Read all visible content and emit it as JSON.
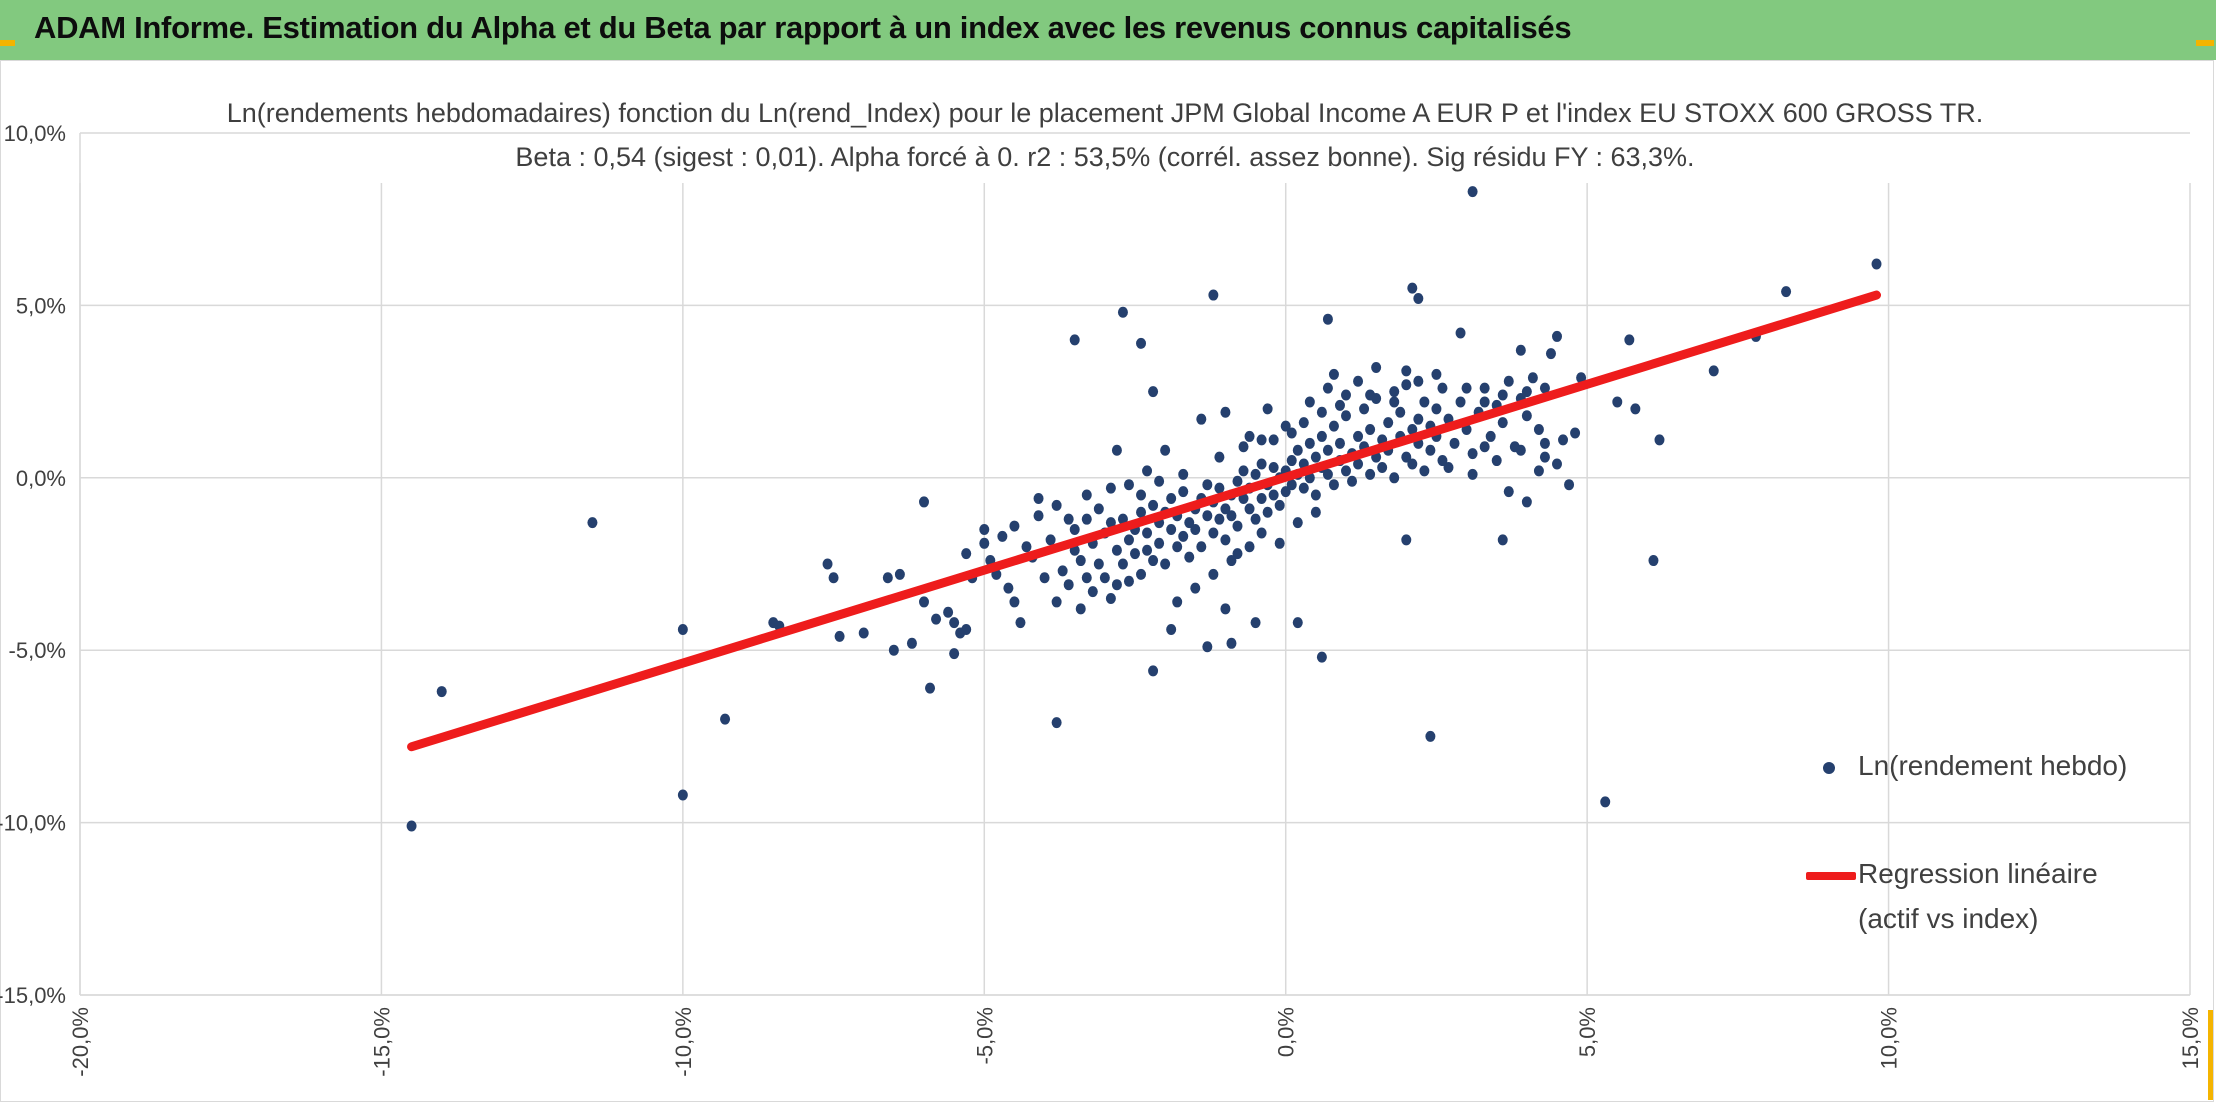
{
  "header": {
    "title": "ADAM Informe. Estimation du Alpha et du Beta par rapport à un index avec les revenus connus capitalisés"
  },
  "colors": {
    "banner": "#82c97f",
    "points": "#25406e",
    "regression": "#ee1c1c",
    "grid": "#d9d9d9"
  },
  "chart_data": {
    "type": "scatter",
    "title": "Ln(rendements hebdomadaires) fonction du Ln(rend_Index) pour le placement JPM Global Income A EUR P et l'index EU STOXX 600 GROSS TR.",
    "subtitle": "Beta : 0,54 (sigest : 0,01). Alpha forcé à 0. r2 : 53,5% (corrél. assez bonne). Sig résidu FY : 63,3%.",
    "xlim": [
      -0.2,
      0.15
    ],
    "ylim": [
      -0.15,
      0.1
    ],
    "x_ticks": [
      -0.2,
      -0.15,
      -0.1,
      -0.05,
      0.0,
      0.05,
      0.1,
      0.15
    ],
    "y_ticks": [
      -0.15,
      -0.1,
      -0.05,
      0.0,
      0.05,
      0.1
    ],
    "x_tick_labels": [
      "-20,0%",
      "-15,0%",
      "-10,0%",
      "-5,0%",
      "0,0%",
      "5,0%",
      "10,0%",
      "15,0%"
    ],
    "y_tick_labels": [
      "-15,0%",
      "-10,0%",
      "-5,0%",
      "0,0%",
      "5,0%",
      "10,0%"
    ],
    "grid": true,
    "legend_position": "right",
    "series": [
      {
        "name": "Ln(rendement hebdo)",
        "type": "scatter",
        "points": [
          [
            -0.145,
            -0.101
          ],
          [
            -0.14,
            -0.062
          ],
          [
            -0.115,
            -0.013
          ],
          [
            -0.1,
            -0.044
          ],
          [
            -0.1,
            -0.092
          ],
          [
            -0.093,
            -0.07
          ],
          [
            -0.085,
            -0.042
          ],
          [
            -0.084,
            -0.043
          ],
          [
            -0.076,
            -0.025
          ],
          [
            -0.075,
            -0.029
          ],
          [
            -0.074,
            -0.046
          ],
          [
            -0.07,
            -0.045
          ],
          [
            -0.066,
            -0.029
          ],
          [
            -0.065,
            -0.05
          ],
          [
            -0.064,
            -0.028
          ],
          [
            -0.062,
            -0.048
          ],
          [
            -0.06,
            -0.007
          ],
          [
            -0.06,
            -0.036
          ],
          [
            -0.059,
            -0.061
          ],
          [
            -0.058,
            -0.041
          ],
          [
            -0.056,
            -0.039
          ],
          [
            -0.055,
            -0.042
          ],
          [
            -0.055,
            -0.051
          ],
          [
            -0.054,
            -0.045
          ],
          [
            -0.053,
            -0.044
          ],
          [
            -0.052,
            -0.029
          ],
          [
            -0.05,
            -0.015
          ],
          [
            -0.049,
            -0.024
          ],
          [
            -0.048,
            -0.028
          ],
          [
            -0.047,
            -0.017
          ],
          [
            -0.046,
            -0.032
          ],
          [
            -0.045,
            -0.036
          ],
          [
            -0.044,
            -0.042
          ],
          [
            -0.043,
            -0.02
          ],
          [
            -0.042,
            -0.023
          ],
          [
            -0.041,
            -0.006
          ],
          [
            -0.04,
            -0.029
          ],
          [
            -0.039,
            -0.018
          ],
          [
            -0.038,
            -0.036
          ],
          [
            -0.037,
            -0.027
          ],
          [
            -0.036,
            -0.012
          ],
          [
            -0.036,
            -0.031
          ],
          [
            -0.035,
            -0.015
          ],
          [
            -0.035,
            -0.021
          ],
          [
            -0.034,
            -0.038
          ],
          [
            -0.034,
            -0.024
          ],
          [
            -0.033,
            -0.029
          ],
          [
            -0.033,
            -0.012
          ],
          [
            -0.032,
            -0.033
          ],
          [
            -0.032,
            -0.019
          ],
          [
            -0.031,
            -0.025
          ],
          [
            -0.031,
            -0.009
          ],
          [
            -0.03,
            -0.016
          ],
          [
            -0.03,
            -0.029
          ],
          [
            -0.029,
            -0.035
          ],
          [
            -0.029,
            -0.013
          ],
          [
            -0.028,
            -0.021
          ],
          [
            -0.028,
            -0.031
          ],
          [
            -0.027,
            -0.012
          ],
          [
            -0.027,
            -0.025
          ],
          [
            -0.026,
            -0.018
          ],
          [
            -0.026,
            -0.03
          ],
          [
            -0.025,
            -0.015
          ],
          [
            -0.025,
            -0.022
          ],
          [
            -0.024,
            -0.01
          ],
          [
            -0.024,
            -0.028
          ],
          [
            -0.023,
            -0.016
          ],
          [
            -0.023,
            -0.021
          ],
          [
            -0.022,
            -0.008
          ],
          [
            -0.022,
            -0.024
          ],
          [
            -0.021,
            -0.013
          ],
          [
            -0.021,
            -0.019
          ],
          [
            -0.02,
            -0.01
          ],
          [
            -0.02,
            -0.025
          ],
          [
            -0.019,
            -0.015
          ],
          [
            -0.019,
            -0.006
          ],
          [
            -0.018,
            -0.02
          ],
          [
            -0.018,
            -0.011
          ],
          [
            -0.017,
            -0.017
          ],
          [
            -0.017,
            -0.004
          ],
          [
            -0.016,
            -0.013
          ],
          [
            -0.016,
            -0.023
          ],
          [
            -0.015,
            -0.009
          ],
          [
            -0.015,
            -0.015
          ],
          [
            -0.014,
            -0.006
          ],
          [
            -0.014,
            -0.02
          ],
          [
            -0.013,
            -0.011
          ],
          [
            -0.013,
            -0.002
          ],
          [
            -0.012,
            -0.016
          ],
          [
            -0.012,
            -0.007
          ],
          [
            -0.011,
            -0.012
          ],
          [
            -0.011,
            -0.003
          ],
          [
            -0.01,
            -0.009
          ],
          [
            -0.01,
            -0.018
          ],
          [
            -0.009,
            -0.005
          ],
          [
            -0.009,
            -0.011
          ],
          [
            -0.008,
            -0.001
          ],
          [
            -0.008,
            -0.014
          ],
          [
            -0.007,
            -0.006
          ],
          [
            -0.007,
            0.002
          ],
          [
            -0.006,
            -0.009
          ],
          [
            -0.006,
            -0.003
          ],
          [
            -0.005,
            -0.012
          ],
          [
            -0.005,
            0.001
          ],
          [
            -0.004,
            -0.006
          ],
          [
            -0.004,
            0.004
          ],
          [
            -0.003,
            -0.002
          ],
          [
            -0.003,
            -0.01
          ],
          [
            -0.002,
            0.003
          ],
          [
            -0.002,
            -0.005
          ],
          [
            -0.001,
            0.0
          ],
          [
            -0.001,
            -0.008
          ],
          [
            0.0,
            0.002
          ],
          [
            0.0,
            -0.004
          ],
          [
            0.001,
            0.005
          ],
          [
            0.001,
            -0.002
          ],
          [
            0.002,
            0.001
          ],
          [
            0.002,
            0.008
          ],
          [
            0.003,
            -0.003
          ],
          [
            0.003,
            0.004
          ],
          [
            0.004,
            0.01
          ],
          [
            0.004,
            0.0
          ],
          [
            0.005,
            0.006
          ],
          [
            0.005,
            -0.005
          ],
          [
            0.006,
            0.003
          ],
          [
            0.006,
            0.012
          ],
          [
            0.007,
            0.001
          ],
          [
            0.007,
            0.008
          ],
          [
            0.008,
            -0.002
          ],
          [
            0.008,
            0.015
          ],
          [
            0.009,
            0.005
          ],
          [
            0.009,
            0.01
          ],
          [
            0.01,
            0.002
          ],
          [
            0.01,
            0.018
          ],
          [
            0.011,
            0.007
          ],
          [
            0.011,
            -0.001
          ],
          [
            0.012,
            0.012
          ],
          [
            0.012,
            0.004
          ],
          [
            0.013,
            0.02
          ],
          [
            0.013,
            0.009
          ],
          [
            0.014,
            0.001
          ],
          [
            0.014,
            0.014
          ],
          [
            0.015,
            0.006
          ],
          [
            0.015,
            0.023
          ],
          [
            0.016,
            0.011
          ],
          [
            0.016,
            0.003
          ],
          [
            0.017,
            0.016
          ],
          [
            0.017,
            0.008
          ],
          [
            0.018,
            0.025
          ],
          [
            0.018,
            0.0
          ],
          [
            0.019,
            0.012
          ],
          [
            0.019,
            0.019
          ],
          [
            0.02,
            0.006
          ],
          [
            0.02,
            0.027
          ],
          [
            0.021,
            0.014
          ],
          [
            0.021,
            0.004
          ],
          [
            0.022,
            0.017
          ],
          [
            0.022,
            0.01
          ],
          [
            0.023,
            0.022
          ],
          [
            0.023,
            0.002
          ],
          [
            0.024,
            0.015
          ],
          [
            0.024,
            0.008
          ],
          [
            0.025,
            0.02
          ],
          [
            0.025,
            0.012
          ],
          [
            0.026,
            0.026
          ],
          [
            0.026,
            0.005
          ],
          [
            0.027,
            0.017
          ],
          [
            0.028,
            0.01
          ],
          [
            0.029,
            0.022
          ],
          [
            0.03,
            0.014
          ],
          [
            0.031,
            0.007
          ],
          [
            0.032,
            0.019
          ],
          [
            0.033,
            0.026
          ],
          [
            0.034,
            0.012
          ],
          [
            0.035,
            0.021
          ],
          [
            0.036,
            0.016
          ],
          [
            0.037,
            0.028
          ],
          [
            0.038,
            0.009
          ],
          [
            0.039,
            0.023
          ],
          [
            0.04,
            0.018
          ],
          [
            0.041,
            0.029
          ],
          [
            0.042,
            0.014
          ],
          [
            0.043,
            0.01
          ],
          [
            0.044,
            0.036
          ],
          [
            0.045,
            0.004
          ],
          [
            -0.014,
            0.017
          ],
          [
            -0.01,
            0.019
          ],
          [
            -0.006,
            0.012
          ],
          [
            -0.003,
            0.02
          ],
          [
            0.0,
            0.015
          ],
          [
            -0.02,
            0.008
          ],
          [
            -0.017,
            0.001
          ],
          [
            0.004,
            0.022
          ],
          [
            0.007,
            0.026
          ],
          [
            0.01,
            0.024
          ],
          [
            -0.008,
            -0.022
          ],
          [
            -0.004,
            -0.016
          ],
          [
            -0.001,
            -0.019
          ],
          [
            0.002,
            -0.013
          ],
          [
            0.005,
            -0.01
          ],
          [
            -0.012,
            -0.028
          ],
          [
            -0.009,
            -0.024
          ],
          [
            -0.006,
            -0.02
          ],
          [
            -0.015,
            -0.032
          ],
          [
            -0.018,
            -0.036
          ],
          [
            0.008,
            0.03
          ],
          [
            0.012,
            0.028
          ],
          [
            0.015,
            0.032
          ],
          [
            0.02,
            0.031
          ],
          [
            0.025,
            0.03
          ],
          [
            0.03,
            0.026
          ],
          [
            0.033,
            0.022
          ],
          [
            0.036,
            0.024
          ],
          [
            0.04,
            0.025
          ],
          [
            0.043,
            0.026
          ],
          [
            -0.002,
            0.011
          ],
          [
            0.001,
            0.013
          ],
          [
            0.003,
            0.016
          ],
          [
            0.006,
            0.019
          ],
          [
            0.009,
            0.021
          ],
          [
            -0.011,
            0.006
          ],
          [
            -0.007,
            0.009
          ],
          [
            -0.004,
            0.011
          ],
          [
            -0.026,
            -0.002
          ],
          [
            -0.023,
            0.002
          ],
          [
            -0.033,
            -0.005
          ],
          [
            -0.029,
            -0.003
          ],
          [
            0.014,
            0.024
          ],
          [
            0.018,
            0.022
          ],
          [
            0.022,
            0.028
          ],
          [
            -0.038,
            -0.008
          ],
          [
            -0.041,
            -0.011
          ],
          [
            -0.045,
            -0.014
          ],
          [
            -0.05,
            -0.019
          ],
          [
            -0.053,
            -0.022
          ],
          [
            -0.028,
            0.008
          ],
          [
            -0.024,
            -0.005
          ],
          [
            -0.021,
            -0.001
          ],
          [
            0.027,
            0.003
          ],
          [
            0.031,
            0.001
          ],
          [
            0.035,
            0.005
          ],
          [
            0.039,
            0.008
          ],
          [
            0.043,
            0.006
          ],
          [
            0.046,
            0.011
          ],
          [
            0.048,
            0.013
          ],
          [
            0.055,
            0.022
          ],
          [
            0.058,
            0.02
          ],
          [
            0.071,
            0.031
          ],
          [
            0.078,
            0.041
          ],
          [
            0.083,
            0.054
          ],
          [
            0.098,
            0.062
          ],
          [
            0.062,
            0.011
          ],
          [
            0.057,
            0.04
          ],
          [
            0.061,
            -0.024
          ],
          [
            0.053,
            -0.094
          ],
          [
            0.049,
            0.029
          ],
          [
            0.045,
            0.041
          ],
          [
            0.047,
            -0.002
          ],
          [
            0.024,
            -0.075
          ],
          [
            0.031,
            0.083
          ],
          [
            0.021,
            0.055
          ],
          [
            0.022,
            0.052
          ],
          [
            0.007,
            0.046
          ],
          [
            -0.012,
            0.053
          ],
          [
            -0.027,
            0.048
          ],
          [
            -0.024,
            0.039
          ],
          [
            -0.035,
            0.04
          ],
          [
            -0.022,
            0.025
          ],
          [
            -0.038,
            -0.071
          ],
          [
            0.006,
            -0.052
          ],
          [
            -0.022,
            -0.056
          ],
          [
            -0.019,
            -0.044
          ],
          [
            -0.013,
            -0.049
          ],
          [
            -0.009,
            -0.048
          ],
          [
            0.036,
            -0.018
          ],
          [
            0.02,
            -0.018
          ],
          [
            0.002,
            -0.042
          ],
          [
            -0.005,
            -0.042
          ],
          [
            -0.01,
            -0.038
          ],
          [
            0.029,
            0.042
          ],
          [
            0.039,
            0.037
          ],
          [
            0.033,
            0.009
          ],
          [
            0.037,
            -0.004
          ],
          [
            0.04,
            -0.007
          ],
          [
            0.042,
            0.002
          ]
        ]
      },
      {
        "name": "Regression linéaire (actif vs index)",
        "type": "line",
        "x": [
          -0.145,
          0.098
        ],
        "y": [
          -0.078,
          0.053
        ]
      }
    ]
  },
  "legend": {
    "scatter_label": "Ln(rendement hebdo)",
    "line_label_1": "Regression linéaire",
    "line_label_2": "(actif vs index)"
  }
}
